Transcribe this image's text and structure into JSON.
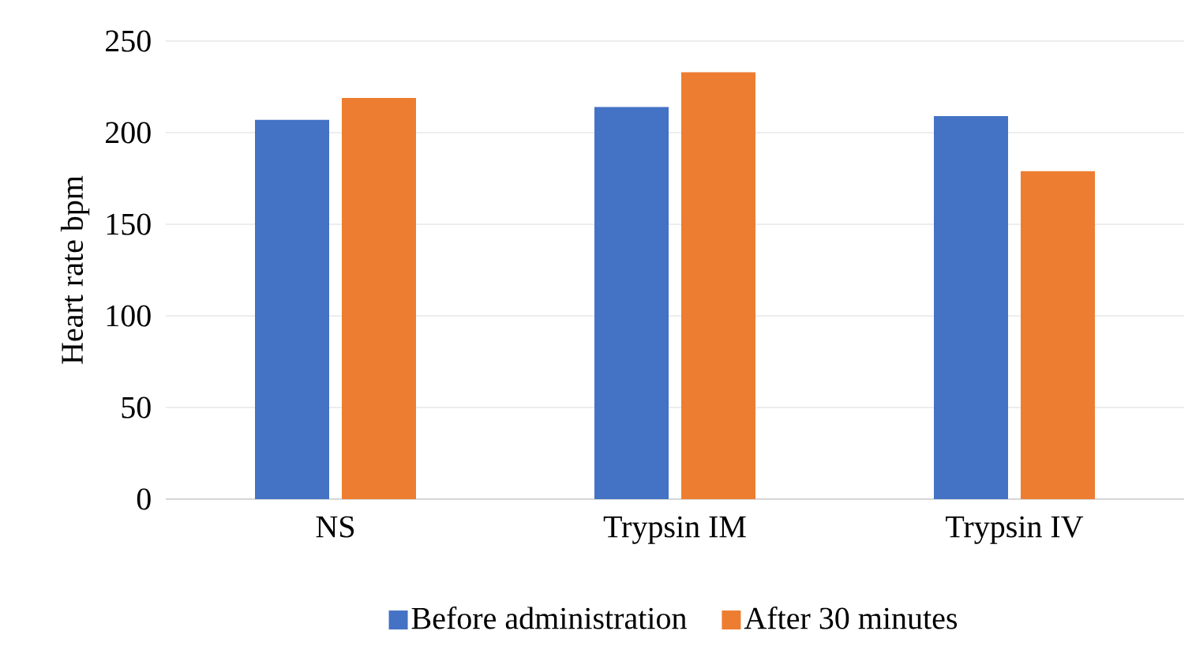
{
  "chart_data": {
    "type": "bar",
    "ylabel": "Heart rate bpm",
    "categories": [
      "NS",
      "Trypsin IM",
      "Trypsin IV"
    ],
    "series": [
      {
        "name": "Before administration",
        "color": "#4472c4",
        "values": [
          207,
          214,
          209
        ]
      },
      {
        "name": "After 30 minutes",
        "color": "#ed7d31",
        "values": [
          219,
          233,
          179
        ]
      }
    ],
    "ylim": [
      0,
      250
    ],
    "yticks": [
      0,
      50,
      100,
      150,
      200,
      250
    ],
    "grid": "y",
    "legend": "bottom"
  }
}
